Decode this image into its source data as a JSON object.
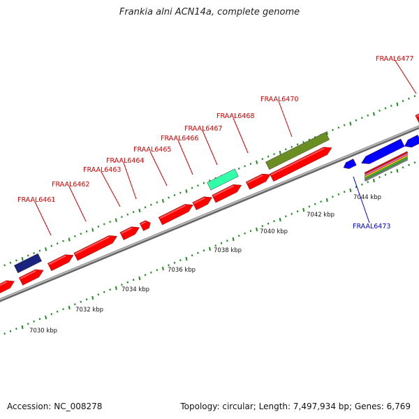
{
  "title": "Frankia alni ACN14a, complete genome",
  "footer": {
    "accession": "Accession: NC_008278",
    "summary": "Topology: circular; Length: 7,497,934 bp; Genes: 6,769"
  },
  "colors": {
    "forward_gene": "#ff0000",
    "reverse_gene": "#0000ff",
    "forward_label": "#cc0000",
    "reverse_label": "#0000cc",
    "backbone": "#888888",
    "tick": "#228b22",
    "olive_feature": "#6b8e23",
    "teal_feature": "#33ffaa",
    "navy_feature": "#1a237e"
  },
  "scale_labels": [
    "7030 kbp",
    "7032 kbp",
    "7034 kbp",
    "7036 kbp",
    "7038 kbp",
    "7040 kbp",
    "7042 kbp",
    "7044 kbp"
  ],
  "gene_labels": [
    {
      "text": "FRAAL6461",
      "strand": "forward"
    },
    {
      "text": "FRAAL6462",
      "strand": "forward"
    },
    {
      "text": "FRAAL6463",
      "strand": "forward"
    },
    {
      "text": "FRAAL6464",
      "strand": "forward"
    },
    {
      "text": "FRAAL6465",
      "strand": "forward"
    },
    {
      "text": "FRAAL6466",
      "strand": "forward"
    },
    {
      "text": "FRAAL6467",
      "strand": "forward"
    },
    {
      "text": "FRAAL6468",
      "strand": "forward"
    },
    {
      "text": "FRAAL6470",
      "strand": "forward"
    },
    {
      "text": "FRAAL6473",
      "strand": "reverse"
    },
    {
      "text": "FRAAL6477",
      "strand": "forward"
    }
  ]
}
